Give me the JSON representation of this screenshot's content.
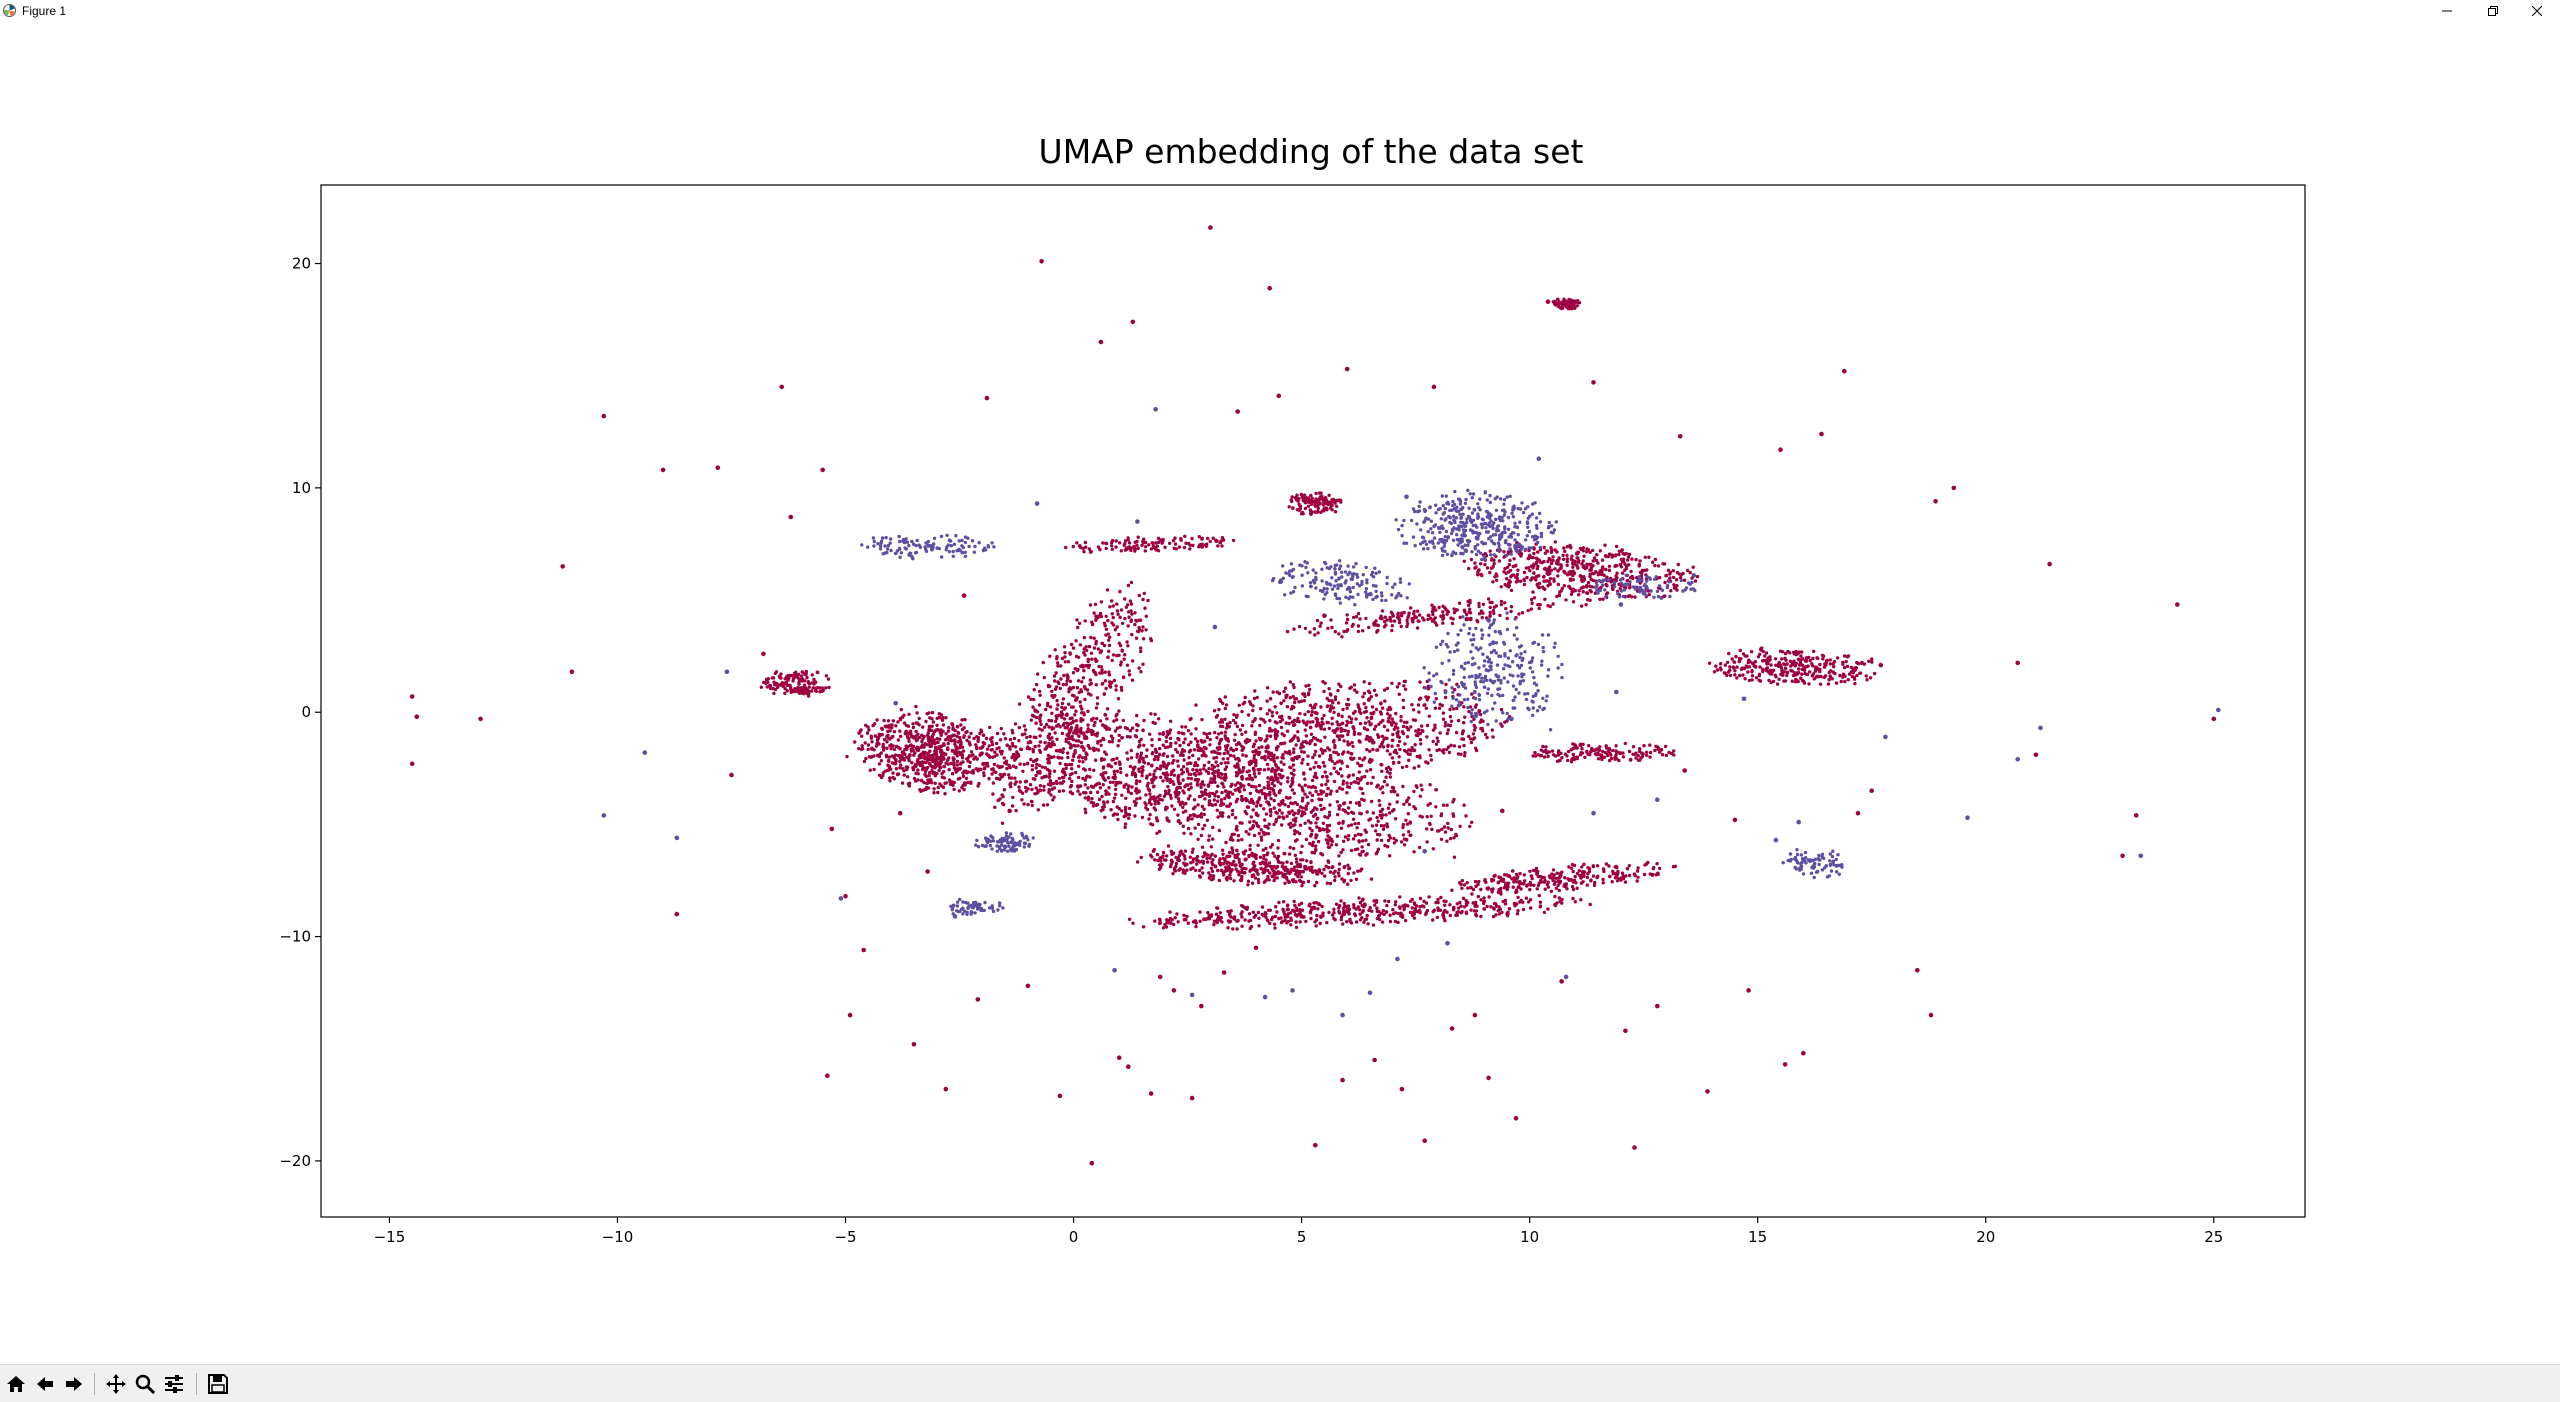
{
  "window": {
    "title": "Figure 1",
    "controls": [
      "minimize-icon",
      "restore-icon",
      "close-icon"
    ]
  },
  "toolbar": {
    "buttons": [
      "home-icon",
      "back-icon",
      "forward-icon",
      "pan-icon",
      "zoom-icon",
      "configure-subplots-icon",
      "save-icon"
    ]
  },
  "colors": {
    "major_class": "#9e0142",
    "minor_class": "#5e4fa2"
  },
  "chart_data": {
    "type": "scatter",
    "title": "UMAP embedding of the data set",
    "xlabel": "",
    "ylabel": "",
    "xlim": [
      -16.5,
      27
    ],
    "ylim": [
      -22.5,
      23.5
    ],
    "xticks": [
      -15,
      -10,
      -5,
      0,
      5,
      10,
      15,
      20,
      25
    ],
    "yticks": [
      -20,
      -10,
      0,
      10,
      20
    ],
    "xtick_labels": [
      "−15",
      "−10",
      "−5",
      "0",
      "5",
      "10",
      "15",
      "20",
      "25"
    ],
    "ytick_labels": [
      "−20",
      "−10",
      "0",
      "10",
      "20"
    ],
    "grid": false,
    "legend": "none",
    "series": [
      {
        "color": "#9e0142",
        "x": [
          -14.5,
          -14.4,
          -14.5,
          -13,
          -11,
          -10.3,
          -11.2,
          -9,
          -8.7,
          -7.8,
          -7.5,
          -6.4,
          -6.2,
          -5.5,
          -5.4,
          -5.3,
          -5,
          -4.6,
          -3.8,
          -3.2,
          -2.8,
          -2.4,
          -1.9,
          -1.4,
          -1,
          -0.7,
          -0.3,
          0.4,
          0.6,
          1,
          1.3,
          1.7,
          1.9,
          2.2,
          2.6,
          3,
          3.3,
          3.6,
          4,
          4.3,
          4.5,
          4.8,
          5.3,
          5.5,
          6,
          6.6,
          7.2,
          7.7,
          7.9,
          8.3,
          9.1,
          9.7,
          10.4,
          10.7,
          11.4,
          12.3,
          12.8,
          13.3,
          13.9,
          14.5,
          14.8,
          15.5,
          16,
          16.4,
          16.9,
          17.2,
          17.7,
          18.5,
          18.9,
          19.3,
          20.7,
          21.4,
          23,
          23.3,
          24.2,
          25,
          -4.9,
          -3.5,
          -2.1,
          1.2,
          2.8,
          5.9,
          8.8,
          12.1,
          15.6,
          18.8,
          -6.8,
          -0.5,
          3.7,
          6.5,
          9.4,
          13.4,
          17.5,
          21.1
        ],
        "y": [
          0.7,
          -0.2,
          -2.3,
          -0.3,
          1.8,
          13.2,
          6.5,
          10.8,
          -9,
          10.9,
          -2.8,
          14.5,
          8.7,
          10.8,
          -16.2,
          -5.2,
          -8.2,
          -10.6,
          -4.5,
          -7.1,
          -16.8,
          5.2,
          14,
          -4.4,
          -12.2,
          20.1,
          -17.1,
          -20.1,
          16.5,
          -15.4,
          17.4,
          -17,
          -11.8,
          -12.4,
          -17.2,
          21.6,
          -11.6,
          13.4,
          -10.5,
          18.9,
          14.1,
          -2.1,
          -19.3,
          4.3,
          15.3,
          -15.5,
          -16.8,
          -19.1,
          14.5,
          -14.1,
          -16.3,
          -18.1,
          18.3,
          -12,
          14.7,
          -19.4,
          -13.1,
          12.3,
          -16.9,
          -4.8,
          -12.4,
          11.7,
          -15.2,
          12.4,
          15.2,
          -4.5,
          2.1,
          -11.5,
          9.4,
          10,
          2.2,
          6.6,
          -6.4,
          -4.6,
          4.8,
          -0.3,
          -13.5,
          -14.8,
          -12.8,
          -15.8,
          -13.1,
          -16.4,
          -13.5,
          -14.2,
          -15.7,
          -13.5,
          2.6,
          -1.5,
          -3.9,
          -2.2,
          -4.4,
          -2.6,
          -3.5,
          -1.9
        ],
        "marker_size": 1.5
      },
      {
        "color": "#5e4fa2",
        "x": [
          -9.4,
          -8.7,
          -7.6,
          -5.1,
          -3.9,
          -2.6,
          -1.5,
          -0.8,
          0.9,
          1.8,
          2.6,
          3.1,
          4.2,
          4.8,
          5.9,
          6.5,
          7.1,
          7.7,
          8.2,
          8.6,
          9.1,
          9.6,
          10.2,
          10.8,
          11.4,
          12,
          12.8,
          14.7,
          15.4,
          15.9,
          17.8,
          19.6,
          20.7,
          21.2,
          23.4,
          25.1,
          -10.3,
          -3.1,
          1.4,
          7.3,
          9.2,
          11.9,
          13.6
        ],
        "y": [
          -1.8,
          -5.6,
          1.8,
          -8.3,
          0.4,
          -9.1,
          -6,
          9.3,
          -11.5,
          13.5,
          -12.6,
          3.8,
          -12.7,
          -12.4,
          -13.5,
          -12.5,
          -11,
          -6.2,
          -10.3,
          7.2,
          4.1,
          -0.3,
          11.3,
          -11.8,
          -4.5,
          4.8,
          -3.9,
          0.6,
          -5.7,
          -4.9,
          -1.1,
          -4.7,
          -2.1,
          -0.7,
          -6.4,
          0.1,
          -4.6,
          7.3,
          8.5,
          9.6,
          3.1,
          0.9,
          6.1
        ],
        "marker_size": 1.5
      }
    ],
    "clusters": [
      {
        "color": "#9e0142",
        "x": 0,
        "y": 0.5,
        "rx": 1.0,
        "ry": 5.0,
        "angle": -15,
        "n": 500
      },
      {
        "color": "#9e0142",
        "x": 3.2,
        "y": -3.2,
        "rx": 5.2,
        "ry": 2.3,
        "angle": -22,
        "n": 1600
      },
      {
        "color": "#9e0142",
        "x": 6.0,
        "y": -0.6,
        "rx": 3.2,
        "ry": 1.9,
        "angle": 5,
        "n": 700
      },
      {
        "color": "#9e0142",
        "x": 3.9,
        "y": -6.9,
        "rx": 2.3,
        "ry": 0.7,
        "angle": -10,
        "n": 400
      },
      {
        "color": "#9e0142",
        "x": 6.3,
        "y": -8.9,
        "rx": 4.6,
        "ry": 0.55,
        "angle": 5,
        "n": 450
      },
      {
        "color": "#9e0142",
        "x": 10.7,
        "y": -7.4,
        "rx": 2.3,
        "ry": 0.5,
        "angle": 10,
        "n": 250
      },
      {
        "color": "#9e0142",
        "x": -3.1,
        "y": -1.8,
        "rx": 1.4,
        "ry": 1.7,
        "angle": 35,
        "n": 650
      },
      {
        "color": "#9e0142",
        "x": -6.1,
        "y": 1.3,
        "rx": 0.7,
        "ry": 0.55,
        "angle": 0,
        "n": 150
      },
      {
        "color": "#9e0142",
        "x": 11.1,
        "y": 6.3,
        "rx": 2.3,
        "ry": 1.1,
        "angle": -10,
        "n": 500
      },
      {
        "color": "#9e0142",
        "x": 15.8,
        "y": 2.0,
        "rx": 1.7,
        "ry": 0.75,
        "angle": -5,
        "n": 300
      },
      {
        "color": "#9e0142",
        "x": 5.3,
        "y": 9.3,
        "rx": 0.55,
        "ry": 0.45,
        "angle": 0,
        "n": 120
      },
      {
        "color": "#9e0142",
        "x": 11.6,
        "y": -1.8,
        "rx": 1.6,
        "ry": 0.4,
        "angle": 0,
        "n": 150
      },
      {
        "color": "#9e0142",
        "x": 10.8,
        "y": 18.2,
        "rx": 0.28,
        "ry": 0.22,
        "angle": 0,
        "n": 80
      },
      {
        "color": "#9e0142",
        "x": 7.9,
        "y": 4.3,
        "rx": 3.2,
        "ry": 0.5,
        "angle": 12,
        "n": 200
      },
      {
        "color": "#9e0142",
        "x": 1.8,
        "y": 7.5,
        "rx": 1.8,
        "ry": 0.3,
        "angle": 5,
        "n": 120
      },
      {
        "color": "#5e4fa2",
        "x": 8.8,
        "y": 8.3,
        "rx": 1.6,
        "ry": 1.4,
        "angle": 0,
        "n": 380
      },
      {
        "color": "#5e4fa2",
        "x": 9.2,
        "y": 1.9,
        "rx": 1.4,
        "ry": 2.3,
        "angle": 0,
        "n": 260
      },
      {
        "color": "#5e4fa2",
        "x": 5.8,
        "y": 5.8,
        "rx": 1.4,
        "ry": 0.9,
        "angle": -10,
        "n": 160
      },
      {
        "color": "#5e4fa2",
        "x": -1.5,
        "y": -5.8,
        "rx": 0.6,
        "ry": 0.4,
        "angle": 0,
        "n": 80
      },
      {
        "color": "#5e4fa2",
        "x": -2.2,
        "y": -8.7,
        "rx": 0.6,
        "ry": 0.35,
        "angle": 0,
        "n": 60
      },
      {
        "color": "#5e4fa2",
        "x": -3.2,
        "y": 7.4,
        "rx": 1.4,
        "ry": 0.5,
        "angle": 0,
        "n": 110
      },
      {
        "color": "#5e4fa2",
        "x": 16.3,
        "y": -6.7,
        "rx": 0.7,
        "ry": 0.6,
        "angle": 0,
        "n": 80
      },
      {
        "color": "#5e4fa2",
        "x": 12.5,
        "y": 5.6,
        "rx": 1.2,
        "ry": 0.5,
        "angle": 0,
        "n": 80
      }
    ]
  }
}
